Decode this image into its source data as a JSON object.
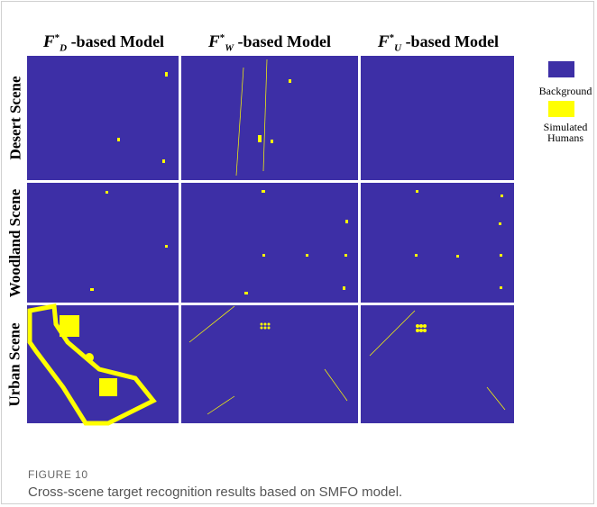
{
  "figure": {
    "columns": [
      {
        "symbol": "F",
        "sup": "*",
        "sub": "D",
        "text": "-based Model"
      },
      {
        "symbol": "F",
        "sup": "*",
        "sub": "W",
        "text": "-based Model"
      },
      {
        "symbol": "F",
        "sup": "*",
        "sub": "U",
        "text": "-based Model"
      }
    ],
    "rows": [
      "Desert Scene",
      "Woodland Scene",
      "Urban Scene"
    ],
    "legend": [
      {
        "label": "Background",
        "color": "#3d2fa6"
      },
      {
        "label": "Simulated Humans",
        "color": "#ffff00"
      }
    ],
    "label": "FIGURE 10",
    "caption": "Cross-scene target recognition results based on SMFO model."
  }
}
